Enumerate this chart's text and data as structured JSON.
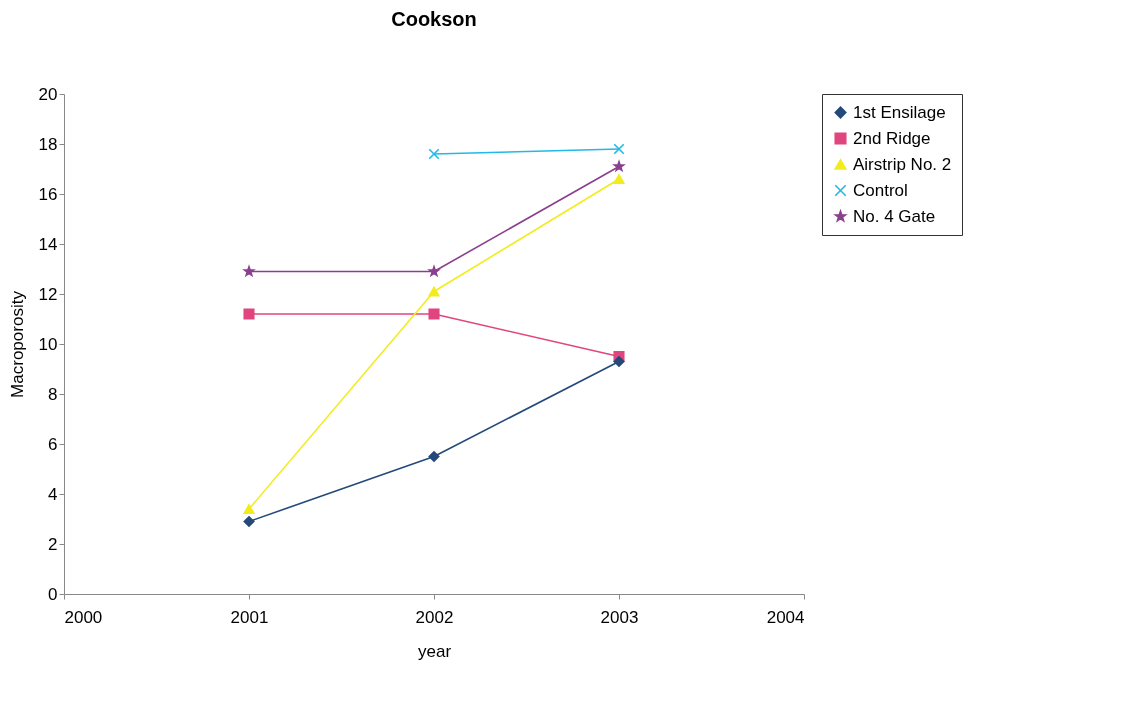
{
  "chart_data": {
    "type": "line",
    "title": "Cookson",
    "xlabel": "year",
    "ylabel": "Macroporosity",
    "x": [
      2001,
      2002,
      2003
    ],
    "xlim": [
      2000,
      2004
    ],
    "xticks": [
      2000,
      2001,
      2002,
      2003,
      2004
    ],
    "ylim": [
      0,
      20
    ],
    "yticks": [
      0,
      2,
      4,
      6,
      8,
      10,
      12,
      14,
      16,
      18,
      20
    ],
    "grid": false,
    "legend": "right",
    "series": [
      {
        "name": "1st Ensilage",
        "color": "#24497a",
        "marker": "diamond",
        "values": [
          2.9,
          5.5,
          9.3
        ]
      },
      {
        "name": "2nd Ridge",
        "color": "#e0457f",
        "marker": "square",
        "values": [
          11.2,
          11.2,
          9.5
        ]
      },
      {
        "name": "Airstrip No. 2",
        "color": "#f2ec1c",
        "marker": "triangle",
        "values": [
          3.4,
          12.1,
          16.6
        ]
      },
      {
        "name": "Control",
        "color": "#22b8e8",
        "marker": "cross",
        "values": [
          null,
          17.6,
          17.8
        ]
      },
      {
        "name": "No. 4 Gate",
        "color": "#8b3f8f",
        "marker": "star",
        "values": [
          12.9,
          12.9,
          17.1
        ]
      }
    ]
  }
}
